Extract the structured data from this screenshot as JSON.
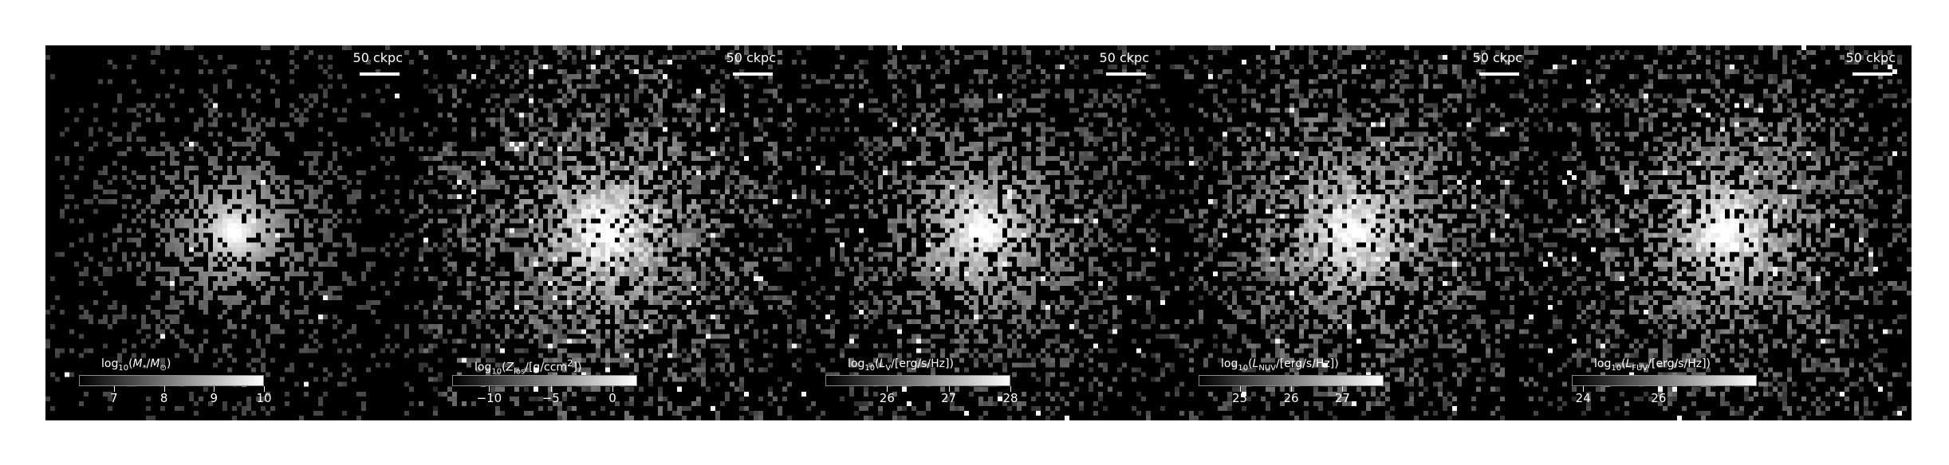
{
  "panels": [
    {
      "scalebar": "50 ckpc",
      "colorbar": {
        "label_html": "log<sub>10</sub>(<i>M</i><sub>*</sub>/<i>M</i><sub>&#8857;</sub>)",
        "range": [
          6.3,
          10
        ],
        "ticks": [
          {
            "value": 7,
            "label": "7"
          },
          {
            "value": 8,
            "label": "8"
          },
          {
            "value": 9,
            "label": "9"
          },
          {
            "value": 10,
            "label": "10"
          }
        ]
      },
      "map": {
        "halo_scale": 0.55,
        "scatter": 0.18,
        "seed": 11
      }
    },
    {
      "scalebar": "50 ckpc",
      "colorbar": {
        "label_html": "log<sub>10</sub>(<i>Z</i><sub>los</sub>/[g/ccm<sup>2</sup>])",
        "range": [
          -13,
          2
        ],
        "ticks": [
          {
            "value": -10,
            "label": "−10"
          },
          {
            "value": -5,
            "label": "−5"
          },
          {
            "value": 0,
            "label": "0"
          }
        ]
      },
      "map": {
        "halo_scale": 1.0,
        "scatter": 0.75,
        "seed": 23
      }
    },
    {
      "scalebar": "50 ckpc",
      "colorbar": {
        "label_html": "log<sub>10</sub>(<i>L</i><sub>V</sub>/[erg/s/Hz])",
        "range": [
          25,
          28
        ],
        "ticks": [
          {
            "value": 26,
            "label": "26"
          },
          {
            "value": 27,
            "label": "27"
          },
          {
            "value": 28,
            "label": "28"
          }
        ]
      },
      "map": {
        "halo_scale": 0.8,
        "scatter": 0.5,
        "seed": 37
      }
    },
    {
      "scalebar": "50 ckpc",
      "colorbar": {
        "label_html": "log<sub>10</sub>(<i>L</i><sub>NUV</sub>/[erg/s/Hz])",
        "range": [
          24.2,
          27.8
        ],
        "ticks": [
          {
            "value": 25,
            "label": "25"
          },
          {
            "value": 26,
            "label": "26"
          },
          {
            "value": 27,
            "label": "27"
          }
        ]
      },
      "map": {
        "halo_scale": 0.95,
        "scatter": 0.65,
        "seed": 53
      }
    },
    {
      "scalebar": "50 ckpc",
      "colorbar": {
        "label_html": "log<sub>10</sub>(<i>L</i><sub>FUV</sub>/[erg/s/Hz])",
        "range": [
          23.7,
          28.6
        ],
        "ticks": [
          {
            "value": 24,
            "label": "24"
          },
          {
            "value": 26,
            "label": "26"
          }
        ]
      },
      "map": {
        "halo_scale": 0.95,
        "scatter": 0.65,
        "seed": 71
      }
    }
  ]
}
